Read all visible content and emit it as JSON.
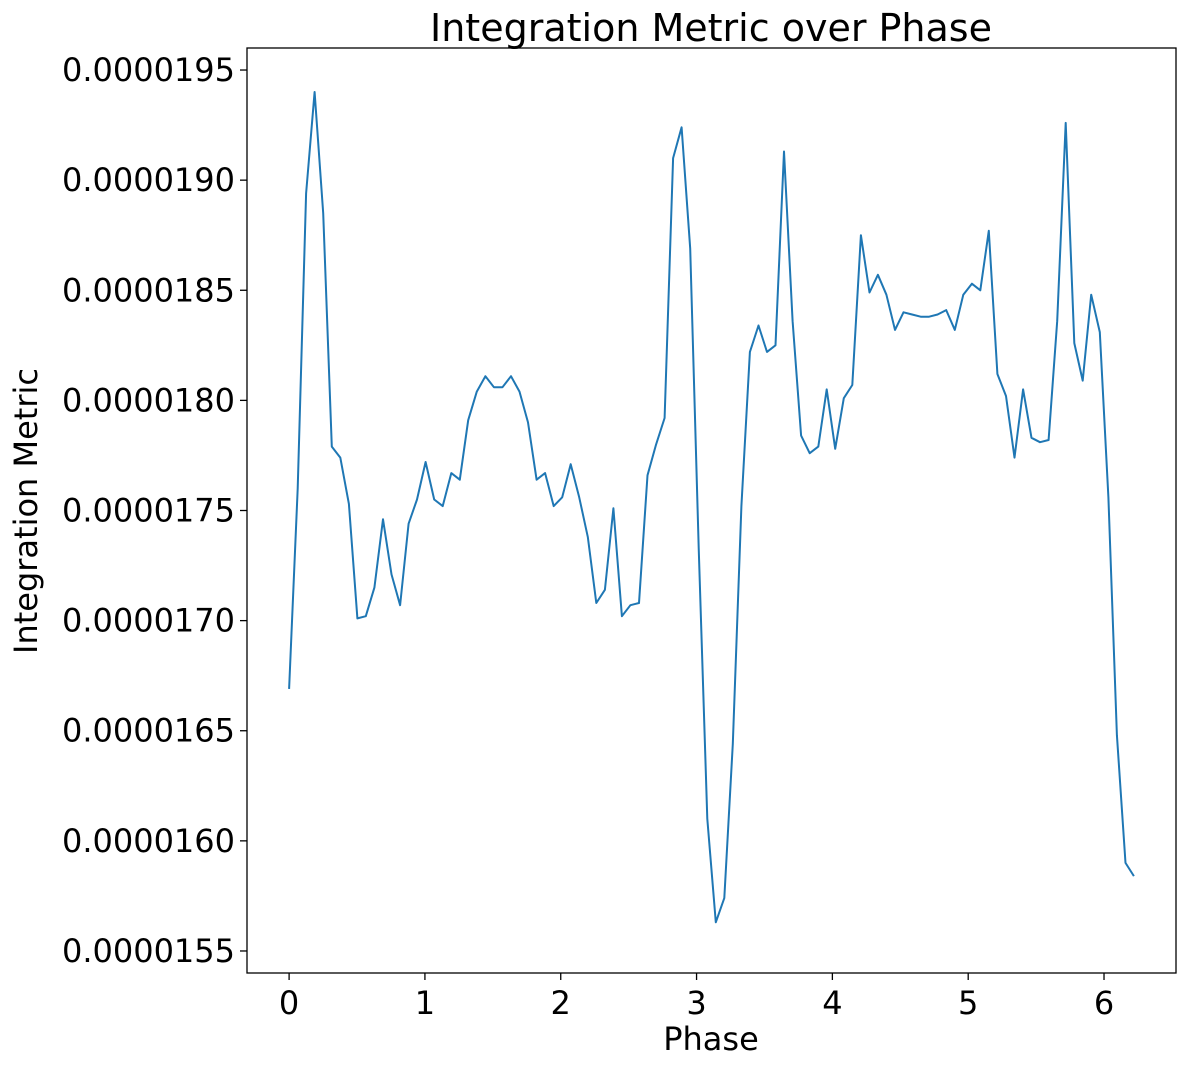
{
  "chart_data": {
    "type": "line",
    "title": "Integration Metric over Phase",
    "xlabel": "Phase",
    "ylabel": "Integration Metric",
    "xlim": [
      -0.31,
      6.53
    ],
    "ylim": [
      1.54e-05,
      1.96e-05
    ],
    "xticks": [
      0,
      1,
      2,
      3,
      4,
      5,
      6
    ],
    "xtick_labels": [
      "0",
      "1",
      "2",
      "3",
      "4",
      "5",
      "6"
    ],
    "yticks": [
      1.55e-05,
      1.6e-05,
      1.65e-05,
      1.7e-05,
      1.75e-05,
      1.8e-05,
      1.85e-05,
      1.9e-05,
      1.95e-05
    ],
    "ytick_labels": [
      "0.0000155",
      "0.0000160",
      "0.0000165",
      "0.0000170",
      "0.0000175",
      "0.0000180",
      "0.0000185",
      "0.0000190",
      "0.0000195"
    ],
    "grid": false,
    "series": [
      {
        "color": "#1f77b4",
        "x": [
          0.0,
          0.063,
          0.125,
          0.188,
          0.251,
          0.314,
          0.377,
          0.44,
          0.503,
          0.565,
          0.628,
          0.691,
          0.754,
          0.817,
          0.88,
          0.942,
          1.005,
          1.068,
          1.131,
          1.194,
          1.257,
          1.319,
          1.382,
          1.445,
          1.508,
          1.571,
          1.634,
          1.696,
          1.759,
          1.822,
          1.885,
          1.948,
          2.011,
          2.073,
          2.136,
          2.199,
          2.262,
          2.325,
          2.388,
          2.45,
          2.513,
          2.576,
          2.639,
          2.702,
          2.765,
          2.827,
          2.89,
          2.953,
          3.016,
          3.079,
          3.142,
          3.204,
          3.267,
          3.33,
          3.393,
          3.456,
          3.519,
          3.581,
          3.644,
          3.707,
          3.77,
          3.833,
          3.896,
          3.958,
          4.021,
          4.084,
          4.147,
          4.21,
          4.273,
          4.335,
          4.398,
          4.461,
          4.524,
          4.587,
          4.65,
          4.712,
          4.775,
          4.838,
          4.901,
          4.964,
          5.027,
          5.089,
          5.152,
          5.215,
          5.278,
          5.341,
          5.404,
          5.466,
          5.529,
          5.592,
          5.655,
          5.718,
          5.781,
          5.843,
          5.906,
          5.969,
          6.032,
          6.095,
          6.158,
          6.22
        ],
        "y": [
          1.669e-05,
          1.76e-05,
          1.894e-05,
          1.94e-05,
          1.885e-05,
          1.779e-05,
          1.774e-05,
          1.753e-05,
          1.701e-05,
          1.702e-05,
          1.715e-05,
          1.746e-05,
          1.721e-05,
          1.707e-05,
          1.744e-05,
          1.755e-05,
          1.772e-05,
          1.755e-05,
          1.752e-05,
          1.767e-05,
          1.764e-05,
          1.791e-05,
          1.804e-05,
          1.811e-05,
          1.806e-05,
          1.806e-05,
          1.811e-05,
          1.804e-05,
          1.79e-05,
          1.764e-05,
          1.767e-05,
          1.752e-05,
          1.756e-05,
          1.771e-05,
          1.756e-05,
          1.738e-05,
          1.708e-05,
          1.714e-05,
          1.751e-05,
          1.702e-05,
          1.707e-05,
          1.708e-05,
          1.766e-05,
          1.78e-05,
          1.792e-05,
          1.91e-05,
          1.924e-05,
          1.869e-05,
          1.733e-05,
          1.61e-05,
          1.563e-05,
          1.574e-05,
          1.644e-05,
          1.752e-05,
          1.822e-05,
          1.834e-05,
          1.822e-05,
          1.825e-05,
          1.913e-05,
          1.836e-05,
          1.784e-05,
          1.776e-05,
          1.779e-05,
          1.805e-05,
          1.778e-05,
          1.801e-05,
          1.807e-05,
          1.875e-05,
          1.849e-05,
          1.857e-05,
          1.848e-05,
          1.832e-05,
          1.84e-05,
          1.839e-05,
          1.838e-05,
          1.838e-05,
          1.839e-05,
          1.841e-05,
          1.832e-05,
          1.848e-05,
          1.853e-05,
          1.85e-05,
          1.877e-05,
          1.812e-05,
          1.802e-05,
          1.774e-05,
          1.805e-05,
          1.783e-05,
          1.781e-05,
          1.782e-05,
          1.836e-05,
          1.926e-05,
          1.826e-05,
          1.809e-05,
          1.848e-05,
          1.831e-05,
          1.756e-05,
          1.648e-05,
          1.59e-05,
          1.584e-05
        ]
      }
    ]
  }
}
